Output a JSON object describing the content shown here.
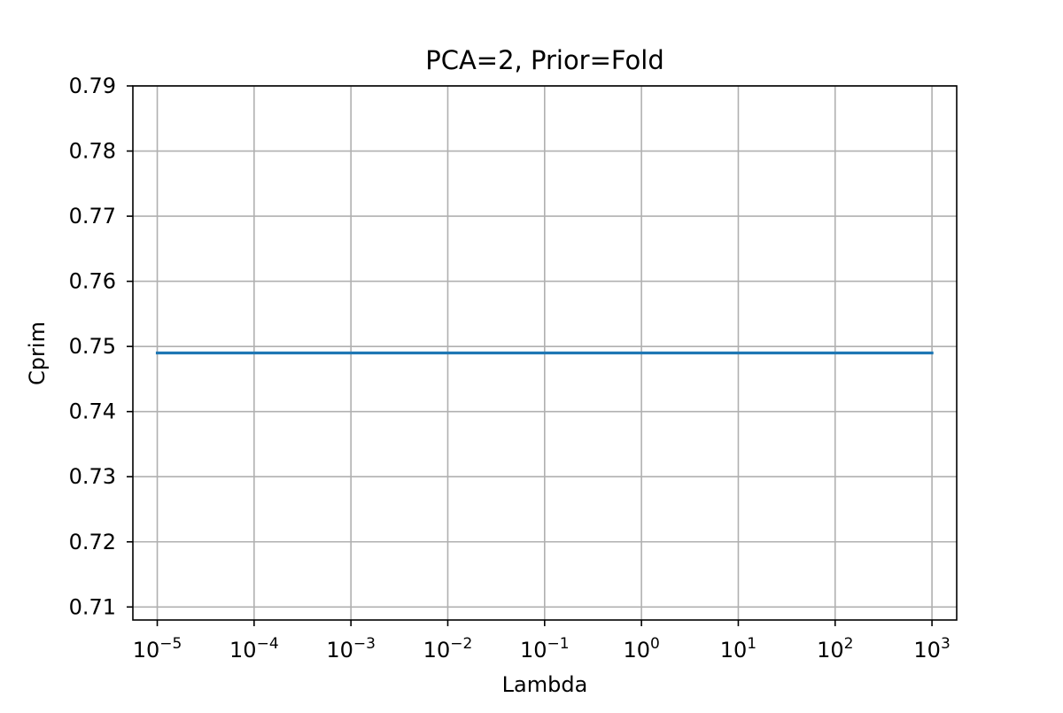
{
  "chart_data": {
    "type": "line",
    "title": "PCA=2, Prior=Fold",
    "xlabel": "Lambda",
    "ylabel": "Cprim",
    "xscale": "log",
    "x_ticks": [
      {
        "base": "10",
        "exp": "−5",
        "value": 1e-05
      },
      {
        "base": "10",
        "exp": "−4",
        "value": 0.0001
      },
      {
        "base": "10",
        "exp": "−3",
        "value": 0.001
      },
      {
        "base": "10",
        "exp": "−2",
        "value": 0.01
      },
      {
        "base": "10",
        "exp": "−1",
        "value": 0.1
      },
      {
        "base": "10",
        "exp": "0",
        "value": 1
      },
      {
        "base": "10",
        "exp": "1",
        "value": 10
      },
      {
        "base": "10",
        "exp": "2",
        "value": 100
      },
      {
        "base": "10",
        "exp": "3",
        "value": 1000
      }
    ],
    "y_ticks": [
      "0.71",
      "0.72",
      "0.73",
      "0.74",
      "0.75",
      "0.76",
      "0.77",
      "0.78",
      "0.79"
    ],
    "ylim": [
      0.708,
      0.79
    ],
    "xlim": [
      5.6e-06,
      1800
    ],
    "grid": true,
    "series": [
      {
        "color": "#1f77b4",
        "x": [
          1e-05,
          0.0001,
          0.001,
          0.01,
          0.1,
          1,
          10,
          100,
          1000
        ],
        "y": [
          0.749,
          0.749,
          0.749,
          0.749,
          0.749,
          0.749,
          0.749,
          0.749,
          0.749
        ]
      }
    ]
  }
}
